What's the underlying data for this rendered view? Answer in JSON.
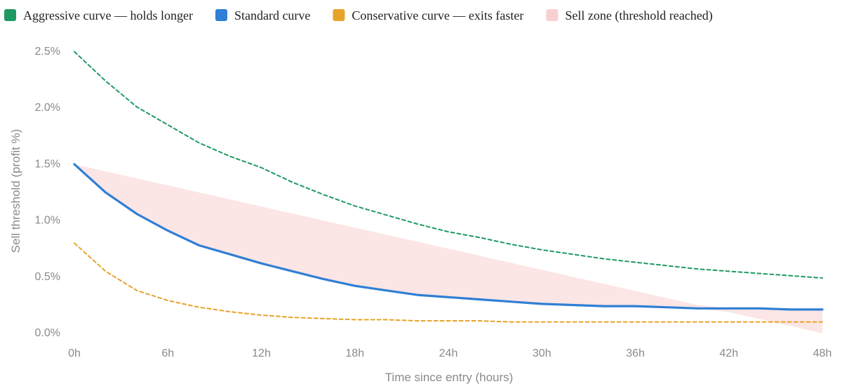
{
  "chart_data": {
    "type": "line",
    "xlabel": "Time since entry (hours)",
    "ylabel": "Sell threshold (profit %)",
    "xlim": [
      0,
      48
    ],
    "ylim": [
      0,
      2.5
    ],
    "x_ticks": [
      0,
      6,
      12,
      18,
      24,
      30,
      36,
      42,
      48
    ],
    "x_tick_labels": [
      "0h",
      "6h",
      "12h",
      "18h",
      "24h",
      "30h",
      "36h",
      "42h",
      "48h"
    ],
    "y_ticks": [
      0,
      0.5,
      1.0,
      1.5,
      2.0,
      2.5
    ],
    "y_tick_labels": [
      "0.0%",
      "0.5%",
      "1.0%",
      "1.5%",
      "2.0%",
      "2.5%"
    ],
    "grid": false,
    "legend_position": "top",
    "x": [
      0,
      2,
      4,
      6,
      8,
      10,
      12,
      14,
      16,
      18,
      20,
      22,
      24,
      26,
      28,
      30,
      32,
      34,
      36,
      38,
      40,
      42,
      44,
      46,
      48
    ],
    "series": [
      {
        "name": "Aggressive curve — holds longer",
        "color": "#1f9a63",
        "style": "dashed",
        "values": [
          2.49,
          2.23,
          2.0,
          1.84,
          1.68,
          1.56,
          1.46,
          1.33,
          1.22,
          1.12,
          1.04,
          0.96,
          0.89,
          0.84,
          0.78,
          0.73,
          0.69,
          0.65,
          0.62,
          0.59,
          0.56,
          0.54,
          0.52,
          0.5,
          0.48
        ]
      },
      {
        "name": "Standard curve",
        "color": "#2f7fd4",
        "style": "solid",
        "values": [
          1.49,
          1.24,
          1.05,
          0.9,
          0.77,
          0.69,
          0.61,
          0.54,
          0.47,
          0.41,
          0.37,
          0.33,
          0.31,
          0.29,
          0.27,
          0.25,
          0.24,
          0.23,
          0.23,
          0.22,
          0.21,
          0.21,
          0.21,
          0.2,
          0.2
        ]
      },
      {
        "name": "Conservative curve — exits faster",
        "color": "#e6a32a",
        "style": "dashed",
        "values": [
          0.79,
          0.54,
          0.37,
          0.28,
          0.22,
          0.18,
          0.15,
          0.13,
          0.12,
          0.11,
          0.11,
          0.1,
          0.1,
          0.1,
          0.09,
          0.09,
          0.09,
          0.09,
          0.09,
          0.09,
          0.09,
          0.09,
          0.09,
          0.09,
          0.09
        ]
      }
    ],
    "zones": [
      {
        "name": "Sell zone (threshold reached)",
        "color": "#f9d0d0",
        "x": [
          0,
          48
        ],
        "values": [
          1.49,
          -0.01
        ]
      }
    ]
  }
}
